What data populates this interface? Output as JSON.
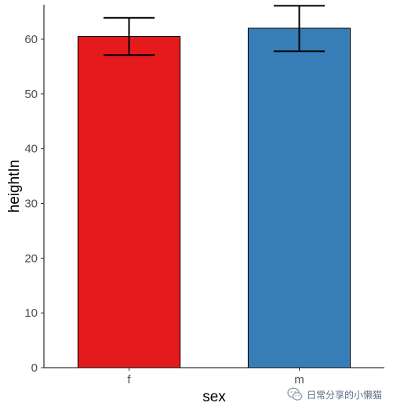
{
  "chart_data": {
    "type": "bar",
    "categories": [
      "f",
      "m"
    ],
    "values": [
      60.5,
      62.0
    ],
    "error_bars": [
      {
        "low": 57.1,
        "high": 63.9
      },
      {
        "low": 57.8,
        "high": 66.1
      }
    ],
    "colors": [
      "#E41A1C",
      "#377EB8"
    ],
    "xlabel": "sex",
    "ylabel": "heightIn",
    "ylim": [
      0,
      66.3
    ],
    "yticks": [
      0,
      10,
      20,
      30,
      40,
      50,
      60
    ],
    "grid": false,
    "legend": "none"
  },
  "watermark": {
    "text": "日常分享的小懒猫",
    "icon": "wechat-logo-icon"
  }
}
